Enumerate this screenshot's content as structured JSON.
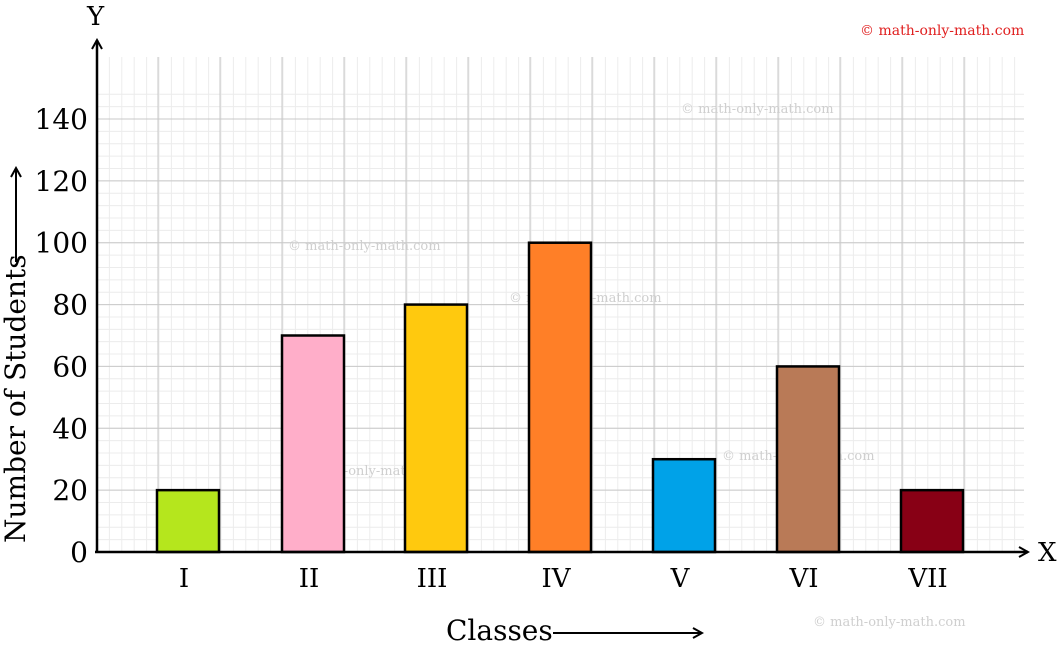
{
  "copyright": "© math-only-math.com",
  "watermark_text": "© math-only-math.com",
  "chart_data": {
    "type": "bar",
    "categories": [
      "I",
      "II",
      "III",
      "IV",
      "V",
      "VI",
      "VII"
    ],
    "values": [
      20,
      70,
      80,
      100,
      30,
      60,
      20
    ],
    "colors": [
      "#b5e61d",
      "#ffaec9",
      "#ffc90e",
      "#ff7f27",
      "#00a2e8",
      "#b97a57",
      "#880015"
    ],
    "xlabel": "Classes",
    "ylabel": "Number of Students",
    "x_axis_letter": "X",
    "y_axis_letter": "Y",
    "ylim": [
      0,
      150
    ],
    "yticks": [
      0,
      20,
      40,
      60,
      80,
      100,
      120,
      140
    ],
    "grid": true,
    "legend": "none"
  }
}
